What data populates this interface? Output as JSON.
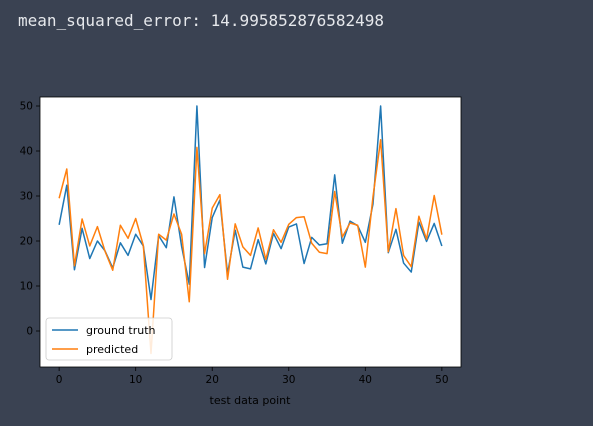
{
  "output": {
    "metric_line": "mean_squared_error: 14.995852876582498"
  },
  "chart_data": {
    "type": "line",
    "title": "",
    "xlabel": "test data point",
    "ylabel": "",
    "xlim": [
      -2.5,
      52.5
    ],
    "ylim": [
      -8,
      52
    ],
    "xticks": [
      0,
      10,
      20,
      30,
      40,
      50
    ],
    "yticks": [
      0,
      10,
      20,
      30,
      40,
      50
    ],
    "grid": false,
    "legend_position": "lower-left",
    "series": [
      {
        "name": "ground truth",
        "color": "#1f77b4",
        "values": [
          23.6,
          32.4,
          13.6,
          22.8,
          16.1,
          20.0,
          17.8,
          14.0,
          19.6,
          16.8,
          21.5,
          18.9,
          7.0,
          21.2,
          18.5,
          29.8,
          18.8,
          10.4,
          50.0,
          14.1,
          25.2,
          29.1,
          12.7,
          22.4,
          14.2,
          13.8,
          20.3,
          14.9,
          21.7,
          18.3,
          23.1,
          23.8,
          15.0,
          20.8,
          19.1,
          19.4,
          34.7,
          19.5,
          24.4,
          23.4,
          19.7,
          28.2,
          50.0,
          17.4,
          22.6,
          15.1,
          13.1,
          24.2,
          19.9,
          23.9,
          18.9
        ]
      },
      {
        "name": "predicted",
        "color": "#ff7f0e",
        "values": [
          29.5,
          36.0,
          14.5,
          24.9,
          18.9,
          23.2,
          17.7,
          13.5,
          23.5,
          20.6,
          25.0,
          19.0,
          -5.0,
          21.5,
          20.2,
          26.0,
          21.5,
          6.5,
          40.8,
          17.2,
          27.3,
          30.3,
          11.5,
          23.8,
          18.7,
          16.8,
          22.9,
          15.9,
          22.5,
          19.7,
          23.7,
          25.2,
          25.4,
          19.5,
          17.5,
          17.2,
          31.0,
          20.9,
          24.0,
          23.5,
          14.2,
          29.8,
          42.5,
          17.6,
          27.2,
          16.8,
          14.3,
          25.5,
          20.4,
          30.1,
          21.4
        ]
      }
    ]
  }
}
